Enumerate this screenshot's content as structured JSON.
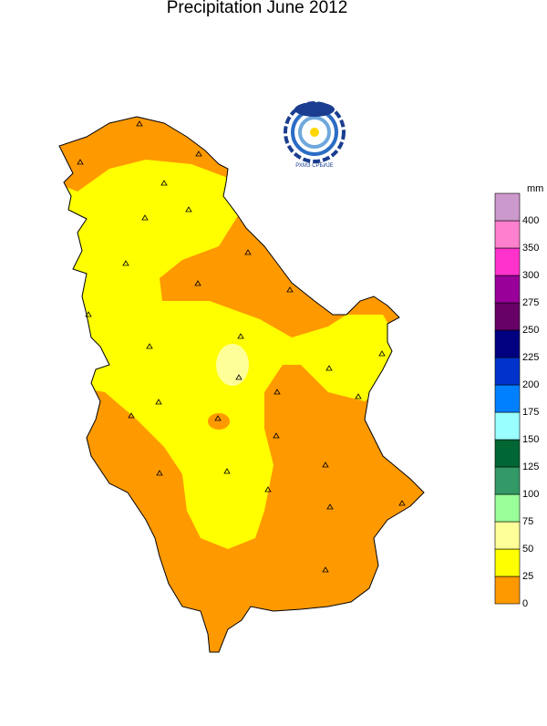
{
  "title": "Precipitation  June  2012",
  "logo_text": "РХМЗ СРБИЈЕ",
  "legend": {
    "unit": "mm",
    "levels": [
      {
        "value": 0,
        "color": "#ff9900"
      },
      {
        "value": 25,
        "color": "#ffff00"
      },
      {
        "value": 50,
        "color": "#ffff99"
      },
      {
        "value": 75,
        "color": "#99ff99"
      },
      {
        "value": 100,
        "color": "#339966"
      },
      {
        "value": 125,
        "color": "#006633"
      },
      {
        "value": 150,
        "color": "#99ffff"
      },
      {
        "value": 175,
        "color": "#0080ff"
      },
      {
        "value": 200,
        "color": "#0033cc"
      },
      {
        "value": 225,
        "color": "#000080"
      },
      {
        "value": 250,
        "color": "#660066"
      },
      {
        "value": 275,
        "color": "#990099"
      },
      {
        "value": 300,
        "color": "#ff33cc"
      },
      {
        "value": 350,
        "color": "#ff80cc"
      },
      {
        "value": 400,
        "color": "#cc99cc"
      }
    ]
  }
}
